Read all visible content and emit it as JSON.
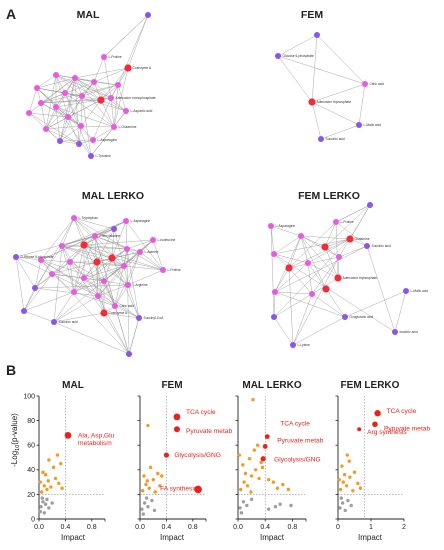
{
  "panel_a": {
    "letter": "A",
    "networks": [
      {
        "title": "MAL",
        "nodes": [
          {
            "label": "",
            "type": "purple"
          },
          {
            "label": "L-Proline",
            "type": "magenta"
          },
          {
            "label": "Coenzyme A",
            "type": "red"
          },
          {
            "label": "",
            "type": "magenta"
          },
          {
            "label": "",
            "type": "magenta"
          },
          {
            "label": "",
            "type": "magenta"
          },
          {
            "label": "",
            "type": "magenta"
          },
          {
            "label": "",
            "type": "magenta"
          },
          {
            "label": "Adenosine monophosphate",
            "type": "magenta"
          },
          {
            "label": "",
            "type": "magenta"
          },
          {
            "label": "",
            "type": "magenta"
          },
          {
            "label": "",
            "type": "red"
          },
          {
            "label": "L-Aspartic acid",
            "type": "magenta"
          },
          {
            "label": "",
            "type": "magenta"
          },
          {
            "label": "",
            "type": "magenta"
          },
          {
            "label": "",
            "type": "magenta"
          },
          {
            "label": "",
            "type": "magenta"
          },
          {
            "label": "L-Glutamine",
            "type": "magenta"
          },
          {
            "label": "",
            "type": "magenta"
          },
          {
            "label": "",
            "type": "magenta"
          },
          {
            "label": "L-Asparagine",
            "type": "magenta"
          },
          {
            "label": "",
            "type": "purple"
          },
          {
            "label": "",
            "type": "purple"
          },
          {
            "label": "L-Tyrosine",
            "type": "purple"
          }
        ]
      },
      {
        "title": "FEM",
        "nodes": [
          {
            "label": "",
            "type": "purple"
          },
          {
            "label": "Glucose 6-phosphate",
            "type": "purple"
          },
          {
            "label": "Citric acid",
            "type": "magenta"
          },
          {
            "label": "Adenosine triphosphate",
            "type": "red"
          },
          {
            "label": "L-Malic acid",
            "type": "purple"
          },
          {
            "label": "Succinic acid",
            "type": "purple"
          }
        ]
      },
      {
        "title": "MAL LERKO",
        "nodes": [
          {
            "label": "L-Tryptophan",
            "type": "magenta"
          },
          {
            "label": "L-Asparagine",
            "type": "magenta"
          },
          {
            "label": "",
            "type": "purple"
          },
          {
            "label": "Phenylalanine",
            "type": "magenta"
          },
          {
            "label": "L-Isoleucine",
            "type": "magenta"
          },
          {
            "label": "",
            "type": "magenta"
          },
          {
            "label": "",
            "type": "red"
          },
          {
            "label": "",
            "type": "magenta"
          },
          {
            "label": "L-Alanine",
            "type": "magenta"
          },
          {
            "label": "",
            "type": "magenta"
          },
          {
            "label": "D-Ribose 5-phosphate",
            "type": "purple"
          },
          {
            "label": "",
            "type": "magenta"
          },
          {
            "label": "",
            "type": "red"
          },
          {
            "label": "",
            "type": "red"
          },
          {
            "label": "",
            "type": "magenta"
          },
          {
            "label": "",
            "type": "magenta"
          },
          {
            "label": "L-Proline",
            "type": "magenta"
          },
          {
            "label": "",
            "type": "magenta"
          },
          {
            "label": "",
            "type": "magenta"
          },
          {
            "label": "L-Arginine",
            "type": "magenta"
          },
          {
            "label": "",
            "type": "purple"
          },
          {
            "label": "",
            "type": "magenta"
          },
          {
            "label": "",
            "type": "magenta"
          },
          {
            "label": "Citric acid",
            "type": "magenta"
          },
          {
            "label": "Coenzyme A",
            "type": "red"
          },
          {
            "label": "Succinyl-CoA",
            "type": "purple"
          },
          {
            "label": "Succinic acid",
            "type": "purple"
          },
          {
            "label": "",
            "type": "purple"
          },
          {
            "label": "",
            "type": "purple"
          }
        ]
      },
      {
        "title": "FEM LERKO",
        "nodes": [
          {
            "label": "",
            "type": "purple"
          },
          {
            "label": "L-Proline",
            "type": "magenta"
          },
          {
            "label": "L-Asparagine",
            "type": "magenta"
          },
          {
            "label": "",
            "type": "magenta"
          },
          {
            "label": "Glutamine",
            "type": "red"
          },
          {
            "label": "Succinic acid",
            "type": "purple"
          },
          {
            "label": "",
            "type": "magenta"
          },
          {
            "label": "",
            "type": "red"
          },
          {
            "label": "",
            "type": "magenta"
          },
          {
            "label": "",
            "type": "magenta"
          },
          {
            "label": "",
            "type": "red"
          },
          {
            "label": "Adenosine triphosphate",
            "type": "red"
          },
          {
            "label": "",
            "type": "red"
          },
          {
            "label": "L-Malic acid",
            "type": "purple"
          },
          {
            "label": "",
            "type": "magenta"
          },
          {
            "label": "",
            "type": "magenta"
          },
          {
            "label": "Oxoglutaric acid",
            "type": "purple"
          },
          {
            "label": "",
            "type": "purple"
          },
          {
            "label": "Isocitric acid",
            "type": "purple"
          },
          {
            "label": "L-Lysine",
            "type": "purple"
          }
        ]
      }
    ]
  },
  "panel_b": {
    "letter": "B",
    "ylabel_prefix": "-Log",
    "ylabel_sub": "10",
    "ylabel_suffix": "(p-value)",
    "xlabel": "Impact",
    "colors": {
      "significant": "#f39a25",
      "nonsignificant": "#9e9e9e",
      "highlight": "#e8231c"
    }
  },
  "chart_data": [
    {
      "type": "scatter",
      "title": "MAL",
      "xlabel": "Impact",
      "ylabel": "-Log10(p-value)",
      "xlim": [
        0,
        1.0
      ],
      "ylim": [
        0,
        100
      ],
      "xticks": [
        "0.0",
        "0.4",
        "0.8"
      ],
      "yticks": [
        "0",
        "20",
        "40",
        "60",
        "80",
        "100"
      ],
      "grid": false,
      "thresholds": {
        "x": 0.4,
        "y": 20
      },
      "points": [
        {
          "x": 0.03,
          "y": 10,
          "c": "gray"
        },
        {
          "x": 0.06,
          "y": 14,
          "c": "gray"
        },
        {
          "x": 0.02,
          "y": 6,
          "c": "gray"
        },
        {
          "x": 0.1,
          "y": 12,
          "c": "gray"
        },
        {
          "x": 0.15,
          "y": 9,
          "c": "gray"
        },
        {
          "x": 0.05,
          "y": 17,
          "c": "gray"
        },
        {
          "x": 0.12,
          "y": 16,
          "c": "gray"
        },
        {
          "x": 0.2,
          "y": 13,
          "c": "gray"
        },
        {
          "x": 0.08,
          "y": 5,
          "c": "gray"
        },
        {
          "x": 0.04,
          "y": 22,
          "c": "orange"
        },
        {
          "x": 0.08,
          "y": 27,
          "c": "orange"
        },
        {
          "x": 0.12,
          "y": 24,
          "c": "orange"
        },
        {
          "x": 0.02,
          "y": 30,
          "c": "orange"
        },
        {
          "x": 0.18,
          "y": 26,
          "c": "orange"
        },
        {
          "x": 0.25,
          "y": 33,
          "c": "orange"
        },
        {
          "x": 0.3,
          "y": 29,
          "c": "orange"
        },
        {
          "x": 0.1,
          "y": 36,
          "c": "orange"
        },
        {
          "x": 0.22,
          "y": 42,
          "c": "orange"
        },
        {
          "x": 0.33,
          "y": 45,
          "c": "orange"
        },
        {
          "x": 0.28,
          "y": 52,
          "c": "orange"
        },
        {
          "x": 0.15,
          "y": 48,
          "c": "orange"
        },
        {
          "x": 0.06,
          "y": 38,
          "c": "orange"
        },
        {
          "x": 0.35,
          "y": 25,
          "c": "orange"
        },
        {
          "x": 0.14,
          "y": 31,
          "c": "orange"
        },
        {
          "x": 0.44,
          "y": 68,
          "c": "red",
          "r": 3.4,
          "label": "Ala, Asp,Glu\nmetabolism"
        }
      ]
    },
    {
      "type": "scatter",
      "title": "FEM",
      "xlabel": "Impact",
      "ylabel": "",
      "xlim": [
        0,
        1.0
      ],
      "ylim": [
        0,
        100
      ],
      "xticks": [
        "0.0",
        "0.4",
        "0.8"
      ],
      "yticks": [],
      "grid": false,
      "thresholds": {
        "x": 0.4,
        "y": 20
      },
      "points": [
        {
          "x": 0.03,
          "y": 8,
          "c": "gray"
        },
        {
          "x": 0.07,
          "y": 13,
          "c": "gray"
        },
        {
          "x": 0.12,
          "y": 10,
          "c": "gray"
        },
        {
          "x": 0.05,
          "y": 4,
          "c": "gray"
        },
        {
          "x": 0.18,
          "y": 15,
          "c": "gray"
        },
        {
          "x": 0.1,
          "y": 17,
          "c": "gray"
        },
        {
          "x": 0.22,
          "y": 7,
          "c": "gray"
        },
        {
          "x": 0.04,
          "y": 23,
          "c": "orange"
        },
        {
          "x": 0.09,
          "y": 28,
          "c": "orange"
        },
        {
          "x": 0.14,
          "y": 25,
          "c": "orange"
        },
        {
          "x": 0.2,
          "y": 32,
          "c": "orange"
        },
        {
          "x": 0.27,
          "y": 37,
          "c": "orange"
        },
        {
          "x": 0.06,
          "y": 35,
          "c": "orange"
        },
        {
          "x": 0.16,
          "y": 42,
          "c": "orange"
        },
        {
          "x": 0.3,
          "y": 27,
          "c": "orange"
        },
        {
          "x": 0.23,
          "y": 22,
          "c": "orange"
        },
        {
          "x": 0.11,
          "y": 31,
          "c": "orange"
        },
        {
          "x": 0.33,
          "y": 35,
          "c": "orange"
        },
        {
          "x": 0.12,
          "y": 76,
          "c": "orange"
        },
        {
          "x": 0.56,
          "y": 83,
          "c": "red",
          "r": 3.4,
          "label": "TCA cycle"
        },
        {
          "x": 0.56,
          "y": 73,
          "c": "red",
          "r": 3.0,
          "label": "Pyruvate metab"
        },
        {
          "x": 0.4,
          "y": 52,
          "c": "red",
          "r": 2.6,
          "label": "Glycolysis/GNG"
        },
        {
          "x": 0.88,
          "y": 24,
          "c": "red",
          "r": 3.8,
          "label": "FA synthesis"
        }
      ]
    },
    {
      "type": "scatter",
      "title": "MAL LERKO",
      "xlabel": "Impact",
      "ylabel": "",
      "xlim": [
        0,
        1.0
      ],
      "ylim": [
        0,
        100
      ],
      "xticks": [
        "0.0",
        "0.4",
        "0.8"
      ],
      "yticks": [],
      "grid": false,
      "thresholds": {
        "x": 0.4,
        "y": 20
      },
      "points": [
        {
          "x": 0.03,
          "y": 9,
          "c": "gray"
        },
        {
          "x": 0.08,
          "y": 14,
          "c": "gray"
        },
        {
          "x": 0.13,
          "y": 11,
          "c": "gray"
        },
        {
          "x": 0.05,
          "y": 5,
          "c": "gray"
        },
        {
          "x": 0.2,
          "y": 16,
          "c": "gray"
        },
        {
          "x": 0.55,
          "y": 10,
          "c": "gray"
        },
        {
          "x": 0.62,
          "y": 12,
          "c": "gray"
        },
        {
          "x": 0.78,
          "y": 11,
          "c": "gray"
        },
        {
          "x": 0.45,
          "y": 8,
          "c": "gray"
        },
        {
          "x": 0.04,
          "y": 24,
          "c": "orange"
        },
        {
          "x": 0.09,
          "y": 30,
          "c": "orange"
        },
        {
          "x": 0.14,
          "y": 27,
          "c": "orange"
        },
        {
          "x": 0.2,
          "y": 35,
          "c": "orange"
        },
        {
          "x": 0.26,
          "y": 40,
          "c": "orange"
        },
        {
          "x": 0.07,
          "y": 44,
          "c": "orange"
        },
        {
          "x": 0.17,
          "y": 49,
          "c": "orange"
        },
        {
          "x": 0.31,
          "y": 33,
          "c": "orange"
        },
        {
          "x": 0.24,
          "y": 56,
          "c": "orange"
        },
        {
          "x": 0.11,
          "y": 37,
          "c": "orange"
        },
        {
          "x": 0.34,
          "y": 46,
          "c": "orange"
        },
        {
          "x": 0.19,
          "y": 22,
          "c": "orange"
        },
        {
          "x": 0.29,
          "y": 60,
          "c": "orange"
        },
        {
          "x": 0.36,
          "y": 42,
          "c": "orange"
        },
        {
          "x": 0.02,
          "y": 52,
          "c": "orange"
        },
        {
          "x": 0.45,
          "y": 32,
          "c": "orange"
        },
        {
          "x": 0.52,
          "y": 30,
          "c": "orange"
        },
        {
          "x": 0.58,
          "y": 25,
          "c": "orange"
        },
        {
          "x": 0.66,
          "y": 28,
          "c": "orange"
        },
        {
          "x": 0.74,
          "y": 24,
          "c": "orange"
        },
        {
          "x": 0.22,
          "y": 97,
          "c": "orange"
        },
        {
          "x": 0.43,
          "y": 67,
          "c": "red",
          "r": 2.4,
          "label": "TCA cycle"
        },
        {
          "x": 0.4,
          "y": 59,
          "c": "red",
          "r": 2.4,
          "label": "Pyruvate metab"
        },
        {
          "x": 0.37,
          "y": 49,
          "c": "red",
          "r": 2.6,
          "label": "Glycolysis/GNG"
        }
      ]
    },
    {
      "type": "scatter",
      "title": "FEM LERKO",
      "xlabel": "Impact",
      "ylabel": "",
      "xlim": [
        0,
        2.0
      ],
      "ylim": [
        0,
        100
      ],
      "xticks": [
        "0",
        "1",
        "2"
      ],
      "yticks": [],
      "grid": false,
      "thresholds": {
        "x": 0.8,
        "y": 20
      },
      "points": [
        {
          "x": 0.06,
          "y": 9,
          "c": "gray"
        },
        {
          "x": 0.14,
          "y": 13,
          "c": "gray"
        },
        {
          "x": 0.22,
          "y": 7,
          "c": "gray"
        },
        {
          "x": 0.3,
          "y": 15,
          "c": "gray"
        },
        {
          "x": 0.1,
          "y": 17,
          "c": "gray"
        },
        {
          "x": 0.4,
          "y": 11,
          "c": "gray"
        },
        {
          "x": 0.08,
          "y": 24,
          "c": "orange"
        },
        {
          "x": 0.16,
          "y": 30,
          "c": "orange"
        },
        {
          "x": 0.26,
          "y": 27,
          "c": "orange"
        },
        {
          "x": 0.36,
          "y": 34,
          "c": "orange"
        },
        {
          "x": 0.5,
          "y": 38,
          "c": "orange"
        },
        {
          "x": 0.12,
          "y": 43,
          "c": "orange"
        },
        {
          "x": 0.34,
          "y": 47,
          "c": "orange"
        },
        {
          "x": 0.6,
          "y": 29,
          "c": "orange"
        },
        {
          "x": 0.45,
          "y": 23,
          "c": "orange"
        },
        {
          "x": 0.2,
          "y": 36,
          "c": "orange"
        },
        {
          "x": 0.68,
          "y": 25,
          "c": "orange"
        },
        {
          "x": 0.04,
          "y": 32,
          "c": "orange"
        },
        {
          "x": 0.28,
          "y": 52,
          "c": "orange"
        },
        {
          "x": 1.2,
          "y": 86,
          "c": "red",
          "r": 3.2,
          "label": "TCA cycle"
        },
        {
          "x": 1.12,
          "y": 77,
          "c": "red",
          "r": 2.8,
          "label": "Pyruvate metab"
        },
        {
          "x": 0.64,
          "y": 73,
          "c": "red",
          "r": 2.0,
          "label": "Arg synthesis"
        }
      ]
    }
  ]
}
